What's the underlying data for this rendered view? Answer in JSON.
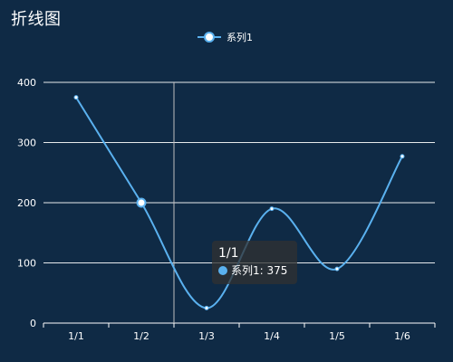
{
  "chart_data": {
    "type": "line",
    "title": "折线图",
    "categories": [
      "1/1",
      "1/2",
      "1/3",
      "1/4",
      "1/5",
      "1/6"
    ],
    "series": [
      {
        "name": "系列1",
        "values": [
          375,
          200,
          25,
          190,
          90,
          277
        ]
      }
    ],
    "ylim": [
      0,
      400
    ],
    "yticks": [
      0,
      100,
      200,
      300,
      400
    ],
    "grid": true,
    "legend_position": "top-center",
    "smooth": true,
    "highlighted_category": "1/2",
    "pointer_category": "1/3"
  },
  "tooltip": {
    "title": "1/1",
    "series_name": "系列1",
    "separator": ": ",
    "value": "375"
  },
  "colors": {
    "background": "#0f2a45",
    "line": "#5ab1ef",
    "grid": "#ffffff",
    "axis": "#ffffff",
    "text": "#ffffff",
    "pointer": "#bfbfbf"
  }
}
